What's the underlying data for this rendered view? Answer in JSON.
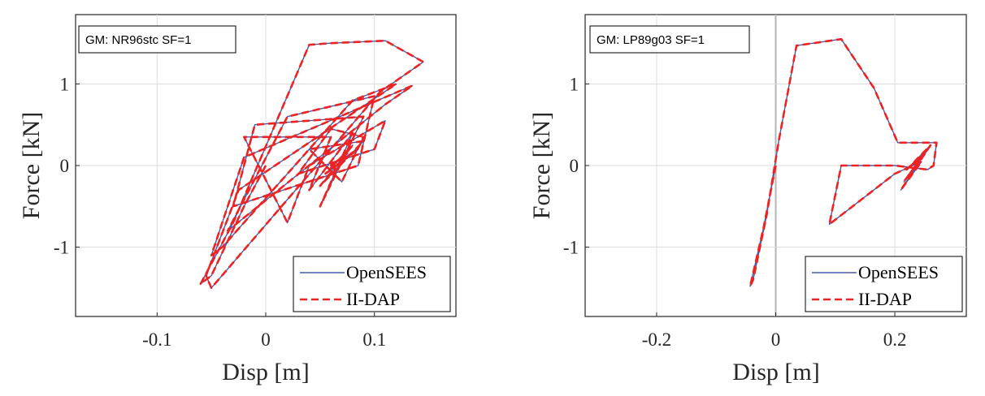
{
  "chart_data": [
    {
      "type": "line",
      "annotation": "GM: NR96stc SF=1",
      "xlabel": "Disp [m]",
      "ylabel": "Force [kN]",
      "xlim": [
        -0.175,
        0.175
      ],
      "ylim": [
        -1.85,
        1.85
      ],
      "xticks": [
        "-0.1",
        "0",
        "0.1"
      ],
      "xtick_values": [
        -0.1,
        0,
        0.1
      ],
      "yticks": [
        "1",
        "0",
        "-1"
      ],
      "ytick_values": [
        1,
        0,
        -1
      ],
      "grid": true,
      "legend_position": "bottom-right",
      "series": [
        {
          "name": "OpenSEES",
          "color": "#4a5aa8",
          "style": "solid",
          "x": [
            0,
            -0.02,
            -0.05,
            -0.06,
            -0.03,
            0.04,
            0.06,
            0.11,
            0.145,
            0.105,
            -0.05,
            -0.055,
            -0.025,
            0.12,
            0.08,
            -0.04,
            -0.05,
            -0.02,
            0.135,
            0.11,
            -0.035,
            0.02,
            0.1,
            0.085,
            -0.03,
            -0.01,
            0.09,
            0.05,
            0.08,
            0.04,
            0.06,
            -0.02,
            0.02,
            0.04,
            0.11,
            0.1,
            0.03,
            0.06,
            0.09,
            0.07,
            0.04,
            0.09,
            0.05,
            0.08,
            0.055,
            0.085,
            0.06,
            0.075,
            0.065
          ],
          "y": [
            0,
            -0.5,
            -1.35,
            -1.45,
            -0.7,
            1.48,
            1.5,
            1.53,
            1.27,
            0.9,
            -1.5,
            -1.35,
            -0.3,
            1.0,
            0.8,
            -1.0,
            -1.1,
            0.1,
            0.98,
            0.75,
            -0.8,
            0.6,
            0.85,
            0.0,
            -0.5,
            0.5,
            0.6,
            -0.5,
            0.4,
            -0.3,
            0.35,
            0.35,
            -0.7,
            0.0,
            0.55,
            0.2,
            -0.1,
            0.45,
            0.35,
            -0.2,
            0.2,
            0.3,
            -0.25,
            0.25,
            -0.1,
            0.2,
            0.0,
            0.15,
            0.05
          ]
        },
        {
          "name": "II-DAP",
          "color": "#ee2222",
          "style": "dashed",
          "x": [
            0,
            -0.02,
            -0.05,
            -0.06,
            -0.03,
            0.04,
            0.06,
            0.11,
            0.145,
            0.105,
            -0.05,
            -0.055,
            -0.025,
            0.12,
            0.08,
            -0.04,
            -0.05,
            -0.02,
            0.135,
            0.11,
            -0.035,
            0.02,
            0.1,
            0.085,
            -0.03,
            -0.01,
            0.09,
            0.05,
            0.08,
            0.04,
            0.06,
            -0.02,
            0.02,
            0.04,
            0.11,
            0.1,
            0.03,
            0.06,
            0.09,
            0.07,
            0.04,
            0.09,
            0.05,
            0.08,
            0.055,
            0.085,
            0.06,
            0.075,
            0.065
          ],
          "y": [
            0,
            -0.5,
            -1.35,
            -1.45,
            -0.7,
            1.48,
            1.5,
            1.53,
            1.27,
            0.9,
            -1.5,
            -1.35,
            -0.3,
            1.0,
            0.8,
            -1.0,
            -1.1,
            0.1,
            0.98,
            0.75,
            -0.8,
            0.6,
            0.85,
            0.0,
            -0.5,
            0.5,
            0.6,
            -0.5,
            0.4,
            -0.3,
            0.35,
            0.35,
            -0.7,
            0.0,
            0.55,
            0.2,
            -0.1,
            0.45,
            0.35,
            -0.2,
            0.2,
            0.3,
            -0.25,
            0.25,
            -0.1,
            0.2,
            0.0,
            0.15,
            0.05
          ]
        }
      ]
    },
    {
      "type": "line",
      "annotation": "GM: LP89g03 SF=1",
      "xlabel": "Disp [m]",
      "ylabel": "Force [kN]",
      "xlim": [
        -0.32,
        0.32
      ],
      "ylim": [
        -1.85,
        1.85
      ],
      "xticks": [
        "-0.2",
        "0",
        "0.2"
      ],
      "xtick_values": [
        -0.2,
        0,
        0.2
      ],
      "yticks": [
        "1",
        "0",
        "-1"
      ],
      "ytick_values": [
        1,
        0,
        -1
      ],
      "grid": true,
      "zero_line": true,
      "legend_position": "bottom-right",
      "series": [
        {
          "name": "OpenSEES",
          "color": "#4a5aa8",
          "style": "solid",
          "x": [
            0,
            -0.02,
            -0.043,
            -0.038,
            -0.015,
            0.005,
            0.035,
            0.11,
            0.165,
            0.205,
            0.27,
            0.265,
            0.255,
            0.2,
            0.11,
            0.09,
            0.2,
            0.245,
            0.21,
            0.26,
            0.22,
            0.25,
            0.215,
            0.255,
            0.225,
            0.245,
            0.23,
            0.24
          ],
          "y": [
            0,
            -0.75,
            -1.48,
            -1.4,
            -0.6,
            0.3,
            1.47,
            1.55,
            0.95,
            0.28,
            0.28,
            0.0,
            -0.05,
            0.0,
            0.0,
            -0.72,
            -0.1,
            0.05,
            -0.3,
            0.25,
            -0.05,
            0.15,
            -0.2,
            0.2,
            -0.1,
            0.1,
            0.0,
            0.05
          ]
        },
        {
          "name": "II-DAP",
          "color": "#ee2222",
          "style": "dashed",
          "x": [
            0,
            -0.02,
            -0.043,
            -0.038,
            -0.015,
            0.005,
            0.035,
            0.11,
            0.165,
            0.205,
            0.27,
            0.265,
            0.255,
            0.2,
            0.11,
            0.09,
            0.2,
            0.245,
            0.21,
            0.26,
            0.22,
            0.25,
            0.215,
            0.255,
            0.225,
            0.245,
            0.23,
            0.24
          ],
          "y": [
            0,
            -0.75,
            -1.48,
            -1.4,
            -0.6,
            0.3,
            1.47,
            1.55,
            0.95,
            0.28,
            0.28,
            0.0,
            -0.05,
            0.0,
            0.0,
            -0.72,
            -0.1,
            0.05,
            -0.3,
            0.25,
            -0.05,
            0.15,
            -0.2,
            0.2,
            -0.1,
            0.1,
            0.0,
            0.05
          ]
        }
      ]
    }
  ]
}
